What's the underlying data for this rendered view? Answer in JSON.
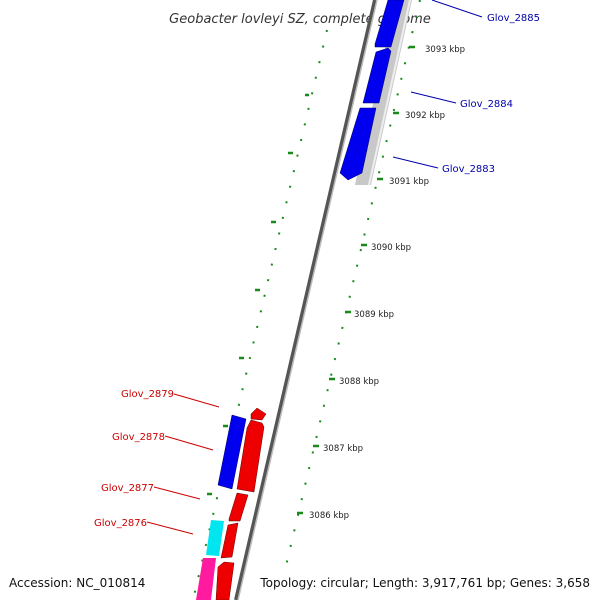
{
  "title": "Geobacter lovleyi SZ, complete genome",
  "footer": {
    "accession": "Accession: NC_010814",
    "summary": "Topology: circular; Length: 3,917,761 bp; Genes: 3,658"
  },
  "colors": {
    "forward_strand": "#ff0000",
    "reverse_strand": "#0000ff",
    "cyan_gene": "#00e5f0",
    "magenta_gene": "#ff1aa0",
    "tick_green": "#1a8a1a",
    "backbone": "#777777",
    "highlight_track": "#c8c8c8",
    "label_top": "#0000aa",
    "label_bottom": "#cc0000"
  },
  "scale_ticks": [
    {
      "label": "3086 kbp"
    },
    {
      "label": "3087 kbp"
    },
    {
      "label": "3088 kbp"
    },
    {
      "label": "3089 kbp"
    },
    {
      "label": "3090 kbp"
    },
    {
      "label": "3091 kbp"
    },
    {
      "label": "3092 kbp"
    },
    {
      "label": "3093 kbp"
    }
  ],
  "gene_labels_top": [
    "Glov_2885",
    "Glov_2884",
    "Glov_2883"
  ],
  "gene_labels_bottom": [
    "Glov_2879",
    "Glov_2878",
    "Glov_2877",
    "Glov_2876"
  ]
}
